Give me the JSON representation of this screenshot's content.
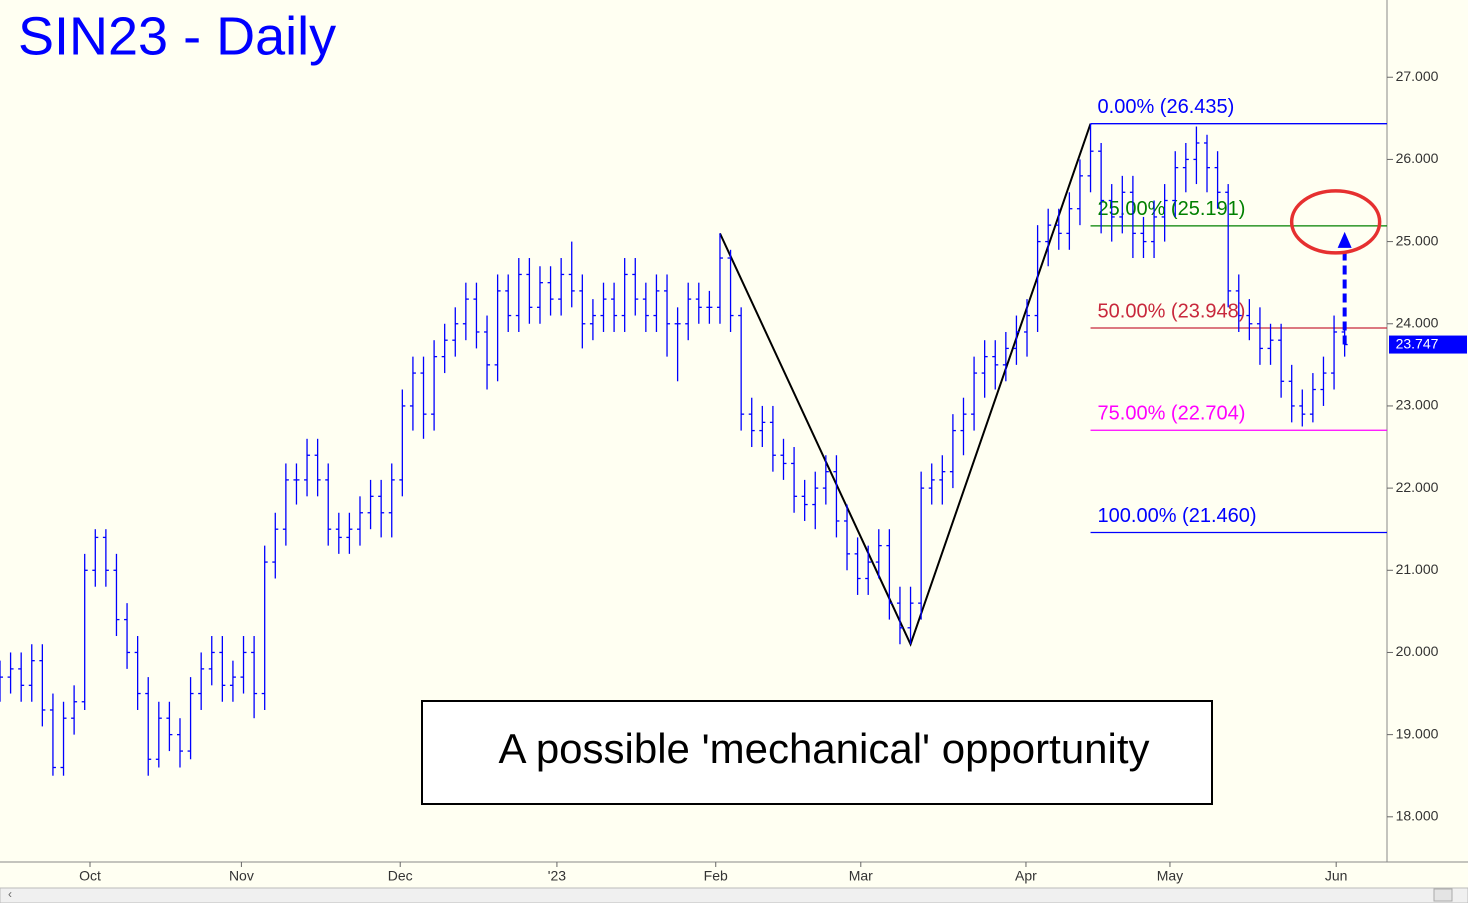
{
  "chart_data": {
    "type": "ohlc",
    "title": "SIN23 - Daily",
    "annotation": "A possible 'mechanical' opportunity",
    "color": "#0000ff",
    "xlim": [
      0,
      131
    ],
    "xticks": [
      {
        "value": 8.5,
        "label": "Oct"
      },
      {
        "value": 22.8,
        "label": "Nov"
      },
      {
        "value": 37.8,
        "label": "Dec"
      },
      {
        "value": 52.6,
        "label": "'23"
      },
      {
        "value": 67.6,
        "label": "Feb"
      },
      {
        "value": 81.3,
        "label": "Mar"
      },
      {
        "value": 96.9,
        "label": "Apr"
      },
      {
        "value": 110.5,
        "label": "May"
      },
      {
        "value": 126.2,
        "label": "Jun"
      }
    ],
    "ylim": [
      17.45,
      27.94
    ],
    "yticks": [
      {
        "value": 18,
        "label": "18.000"
      },
      {
        "value": 19,
        "label": "19.000"
      },
      {
        "value": 20,
        "label": "20.000"
      },
      {
        "value": 21,
        "label": "21.000"
      },
      {
        "value": 22,
        "label": "22.000"
      },
      {
        "value": 23,
        "label": "23.000"
      },
      {
        "value": 24,
        "label": "24.000"
      },
      {
        "value": 25,
        "label": "25.000"
      },
      {
        "value": 26,
        "label": "26.000"
      },
      {
        "value": 27,
        "label": "27.000"
      }
    ],
    "open": [
      19.6,
      19.7,
      19.8,
      19.6,
      19.9,
      19.3,
      18.6,
      19.2,
      19.4,
      21.0,
      21.4,
      21.0,
      20.4,
      20.0,
      19.5,
      18.7,
      19.2,
      19.0,
      18.8,
      19.5,
      19.8,
      20.0,
      19.6,
      19.7,
      20.0,
      19.5,
      21.1,
      21.5,
      22.1,
      22.1,
      22.4,
      22.1,
      21.5,
      21.4,
      21.5,
      21.7,
      21.9,
      21.7,
      22.1,
      23.0,
      23.4,
      22.9,
      23.6,
      23.8,
      24.0,
      24.3,
      23.9,
      23.5,
      24.4,
      24.1,
      24.6,
      24.2,
      24.5,
      24.3,
      24.6,
      24.4,
      24.0,
      24.1,
      24.3,
      24.1,
      24.6,
      24.3,
      24.1,
      24.4,
      24.0,
      24.0,
      24.3,
      24.2,
      24.2,
      24.8,
      24.1,
      22.9,
      22.7,
      22.8,
      22.4,
      22.3,
      21.9,
      21.8,
      22.0,
      22.2,
      21.6,
      21.2,
      20.9,
      21.1,
      21.3,
      20.6,
      20.3,
      20.6,
      22.0,
      22.1,
      22.2,
      22.7,
      22.9,
      23.4,
      23.6,
      23.5,
      23.7,
      23.9,
      24.1,
      25.0,
      25.2,
      25.1,
      25.4,
      25.8,
      26.1,
      25.5,
      25.3,
      25.6,
      25.1,
      25.0,
      25.3,
      25.5,
      25.9,
      26.0,
      26.2,
      25.9,
      25.6,
      24.4,
      24.1,
      24.0,
      23.7,
      23.8,
      23.3,
      23.0,
      22.9,
      23.2,
      23.4,
      23.9
    ],
    "high": [
      19.9,
      20.0,
      20.0,
      20.1,
      20.1,
      19.5,
      19.4,
      19.6,
      21.2,
      21.5,
      21.5,
      21.2,
      20.6,
      20.2,
      19.7,
      19.4,
      19.4,
      19.2,
      19.7,
      20.0,
      20.2,
      20.2,
      19.9,
      20.2,
      20.2,
      21.3,
      21.7,
      22.3,
      22.3,
      22.6,
      22.6,
      22.3,
      21.7,
      21.7,
      21.9,
      22.1,
      22.1,
      22.3,
      23.2,
      23.6,
      23.6,
      23.8,
      24.0,
      24.2,
      24.5,
      24.5,
      24.1,
      24.6,
      24.6,
      24.8,
      24.8,
      24.7,
      24.7,
      24.8,
      25.0,
      24.6,
      24.3,
      24.5,
      24.5,
      24.8,
      24.8,
      24.5,
      24.6,
      24.6,
      24.2,
      24.5,
      24.5,
      24.4,
      25.1,
      24.9,
      24.2,
      23.1,
      23.0,
      23.0,
      22.6,
      22.5,
      22.1,
      22.2,
      22.4,
      22.4,
      21.8,
      21.4,
      21.3,
      21.5,
      21.5,
      20.8,
      20.8,
      22.2,
      22.3,
      22.4,
      22.9,
      23.1,
      23.6,
      23.8,
      23.8,
      23.9,
      24.1,
      24.3,
      25.2,
      25.4,
      25.4,
      25.6,
      26.0,
      26.435,
      26.2,
      25.7,
      25.8,
      25.8,
      25.3,
      25.5,
      25.7,
      26.1,
      26.2,
      26.4,
      26.3,
      26.1,
      25.7,
      24.6,
      24.3,
      24.2,
      24.0,
      24.0,
      23.5,
      23.2,
      23.4,
      23.6,
      24.1,
      24.0
    ],
    "low": [
      19.4,
      19.5,
      19.4,
      19.4,
      19.1,
      18.5,
      18.5,
      19.0,
      19.3,
      20.8,
      20.8,
      20.2,
      19.8,
      19.3,
      18.5,
      18.6,
      18.8,
      18.6,
      18.7,
      19.3,
      19.6,
      19.4,
      19.4,
      19.5,
      19.2,
      19.3,
      20.9,
      21.3,
      21.8,
      21.9,
      21.9,
      21.3,
      21.2,
      21.2,
      21.3,
      21.5,
      21.4,
      21.4,
      21.9,
      22.7,
      22.6,
      22.7,
      23.4,
      23.6,
      23.8,
      23.7,
      23.2,
      23.3,
      23.9,
      23.9,
      24.0,
      24.0,
      24.1,
      24.1,
      24.2,
      23.7,
      23.8,
      23.9,
      23.9,
      23.9,
      24.1,
      23.9,
      23.9,
      23.6,
      23.3,
      23.8,
      24.0,
      24.0,
      24.0,
      23.9,
      22.7,
      22.5,
      22.5,
      22.2,
      22.1,
      21.7,
      21.6,
      21.5,
      21.8,
      21.4,
      21.0,
      20.7,
      20.7,
      20.9,
      20.4,
      20.1,
      20.1,
      20.4,
      21.8,
      21.8,
      22.0,
      22.4,
      22.7,
      23.1,
      23.2,
      23.3,
      23.5,
      23.6,
      23.9,
      24.7,
      24.9,
      24.9,
      25.2,
      25.6,
      25.1,
      25.0,
      25.1,
      24.8,
      24.8,
      24.8,
      25.0,
      25.3,
      25.6,
      25.7,
      25.6,
      25.4,
      24.2,
      23.9,
      23.8,
      23.5,
      23.5,
      23.1,
      22.8,
      22.75,
      22.8,
      23.0,
      23.2,
      23.6
    ],
    "close": [
      19.7,
      19.8,
      19.6,
      19.9,
      19.3,
      18.6,
      19.2,
      19.4,
      21.0,
      21.4,
      21.0,
      20.4,
      20.0,
      19.5,
      18.7,
      19.2,
      19.0,
      18.8,
      19.5,
      19.8,
      20.0,
      19.6,
      19.7,
      20.0,
      19.5,
      21.1,
      21.5,
      22.1,
      22.1,
      22.4,
      22.1,
      21.5,
      21.4,
      21.5,
      21.7,
      21.9,
      21.7,
      22.1,
      23.0,
      23.4,
      22.9,
      23.6,
      23.8,
      24.0,
      24.3,
      23.9,
      23.5,
      24.4,
      24.1,
      24.6,
      24.2,
      24.5,
      24.3,
      24.6,
      24.4,
      24.0,
      24.1,
      24.3,
      24.1,
      24.6,
      24.3,
      24.1,
      24.4,
      24.0,
      24.0,
      24.3,
      24.2,
      24.2,
      24.8,
      24.1,
      22.9,
      22.7,
      22.8,
      22.4,
      22.3,
      21.9,
      21.8,
      22.0,
      22.2,
      21.6,
      21.2,
      20.9,
      21.1,
      21.3,
      20.6,
      20.3,
      20.6,
      22.0,
      22.1,
      22.2,
      22.7,
      22.9,
      23.4,
      23.6,
      23.5,
      23.7,
      23.9,
      24.1,
      25.0,
      25.2,
      25.1,
      25.4,
      25.8,
      26.1,
      25.5,
      25.3,
      25.6,
      25.1,
      25.0,
      25.3,
      25.5,
      25.9,
      26.0,
      26.2,
      25.9,
      25.6,
      24.4,
      24.1,
      24.0,
      23.7,
      23.8,
      23.3,
      23.0,
      22.9,
      23.2,
      23.4,
      23.9,
      23.747
    ],
    "pattern": {
      "x": [
        68,
        86,
        103
      ],
      "y": [
        25.1,
        20.1,
        26.435
      ]
    },
    "levels": [
      {
        "label": "0.00% (26.435)",
        "value": 26.435,
        "color": "#0000ff"
      },
      {
        "label": "25.00% (25.191)",
        "value": 25.191,
        "color": "#008000"
      },
      {
        "label": "50.00% (23.948)",
        "value": 23.948,
        "color": "#c8283c"
      },
      {
        "label": "75.00% (22.704)",
        "value": 22.704,
        "color": "#ff00ff"
      },
      {
        "label": "100.00% (21.460)",
        "value": 21.46,
        "color": "#0000ff"
      }
    ],
    "levels_start": 103,
    "last_price": 23.747
  }
}
